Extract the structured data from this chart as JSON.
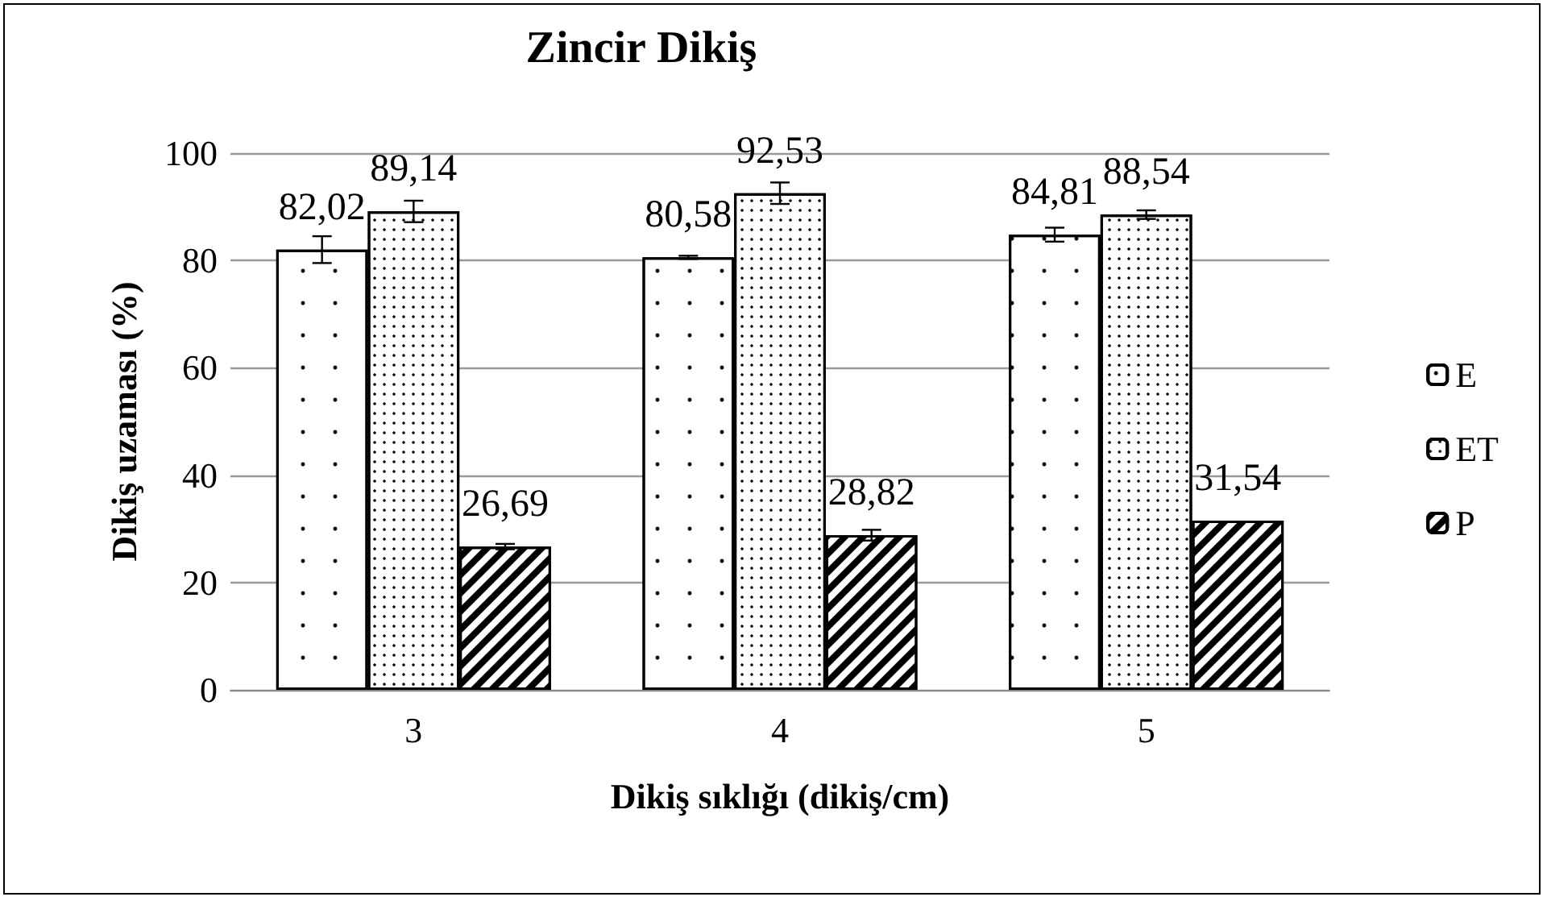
{
  "chart_data": {
    "type": "bar",
    "title": "Zincir Dikiş",
    "xlabel": "Dikiş sıklığı (dikiş/cm)",
    "ylabel": "Dikiş uzaması (%)",
    "categories": [
      "3",
      "4",
      "5"
    ],
    "series": [
      {
        "name": "E",
        "color": "#ffffff",
        "values": [
          82.02,
          80.58,
          84.81
        ],
        "value_labels": [
          "82,02",
          "80,58",
          "84,81"
        ],
        "errors": [
          2.5,
          0.3,
          1.3
        ]
      },
      {
        "name": "ET",
        "color": "#ffffff",
        "values": [
          89.14,
          92.53,
          88.54
        ],
        "value_labels": [
          "89,14",
          "92,53",
          "88,54"
        ],
        "errors": [
          2,
          2,
          0.8
        ]
      },
      {
        "name": "P",
        "color": "#ffffff",
        "values": [
          26.69,
          28.82,
          31.54
        ],
        "value_labels": [
          "26,69",
          "28,82",
          "31,54"
        ],
        "errors": [
          0.5,
          1,
          null
        ]
      }
    ],
    "ylim": [
      0,
      100
    ],
    "yticks": [
      0,
      20,
      40,
      60,
      80,
      100
    ],
    "grid": "y",
    "legend": "right"
  }
}
